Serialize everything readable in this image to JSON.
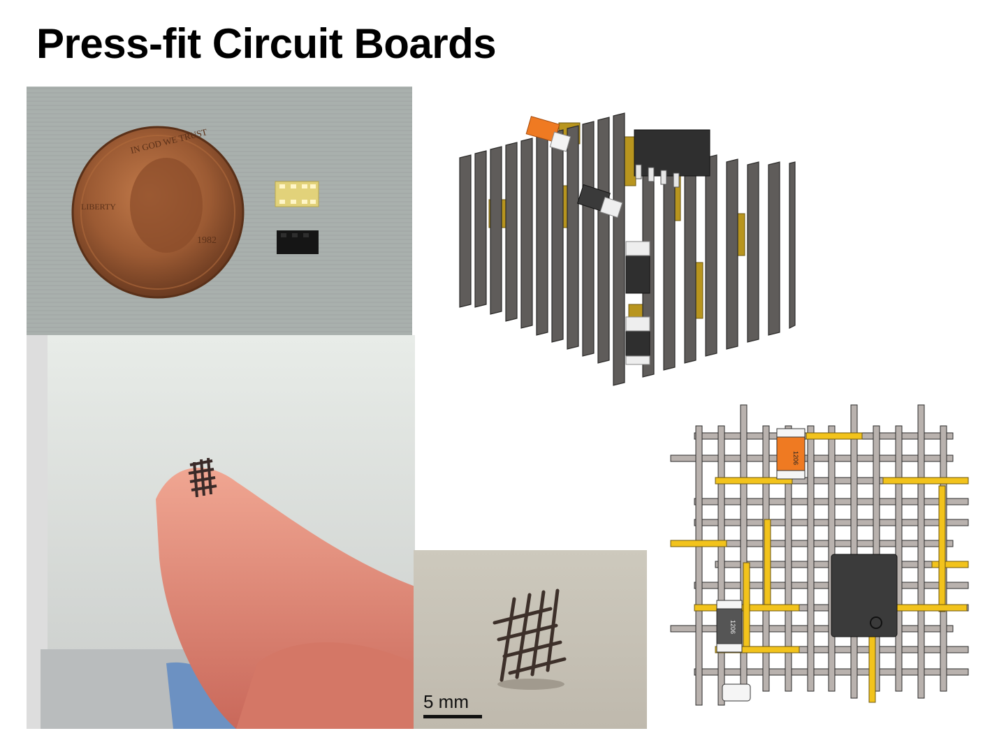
{
  "slide": {
    "title": "Press-fit Circuit Boards"
  },
  "photos": {
    "penny": {
      "coin_motto": "IN GOD WE TRUST",
      "coin_word": "LIBERTY",
      "coin_year": "1982"
    },
    "finger_photo": {},
    "standing_lattice": {
      "scale_bar_label": "5 mm"
    }
  },
  "renders": {
    "cube_render": {},
    "top_view": {
      "component_label_orange": "1206",
      "component_label_gray": "1206"
    }
  },
  "colors": {
    "copper": "#f2c31c",
    "board_gray": "#8c8886",
    "resistor_orange": "#ef7a22",
    "chip_black": "#3b3b3b"
  }
}
